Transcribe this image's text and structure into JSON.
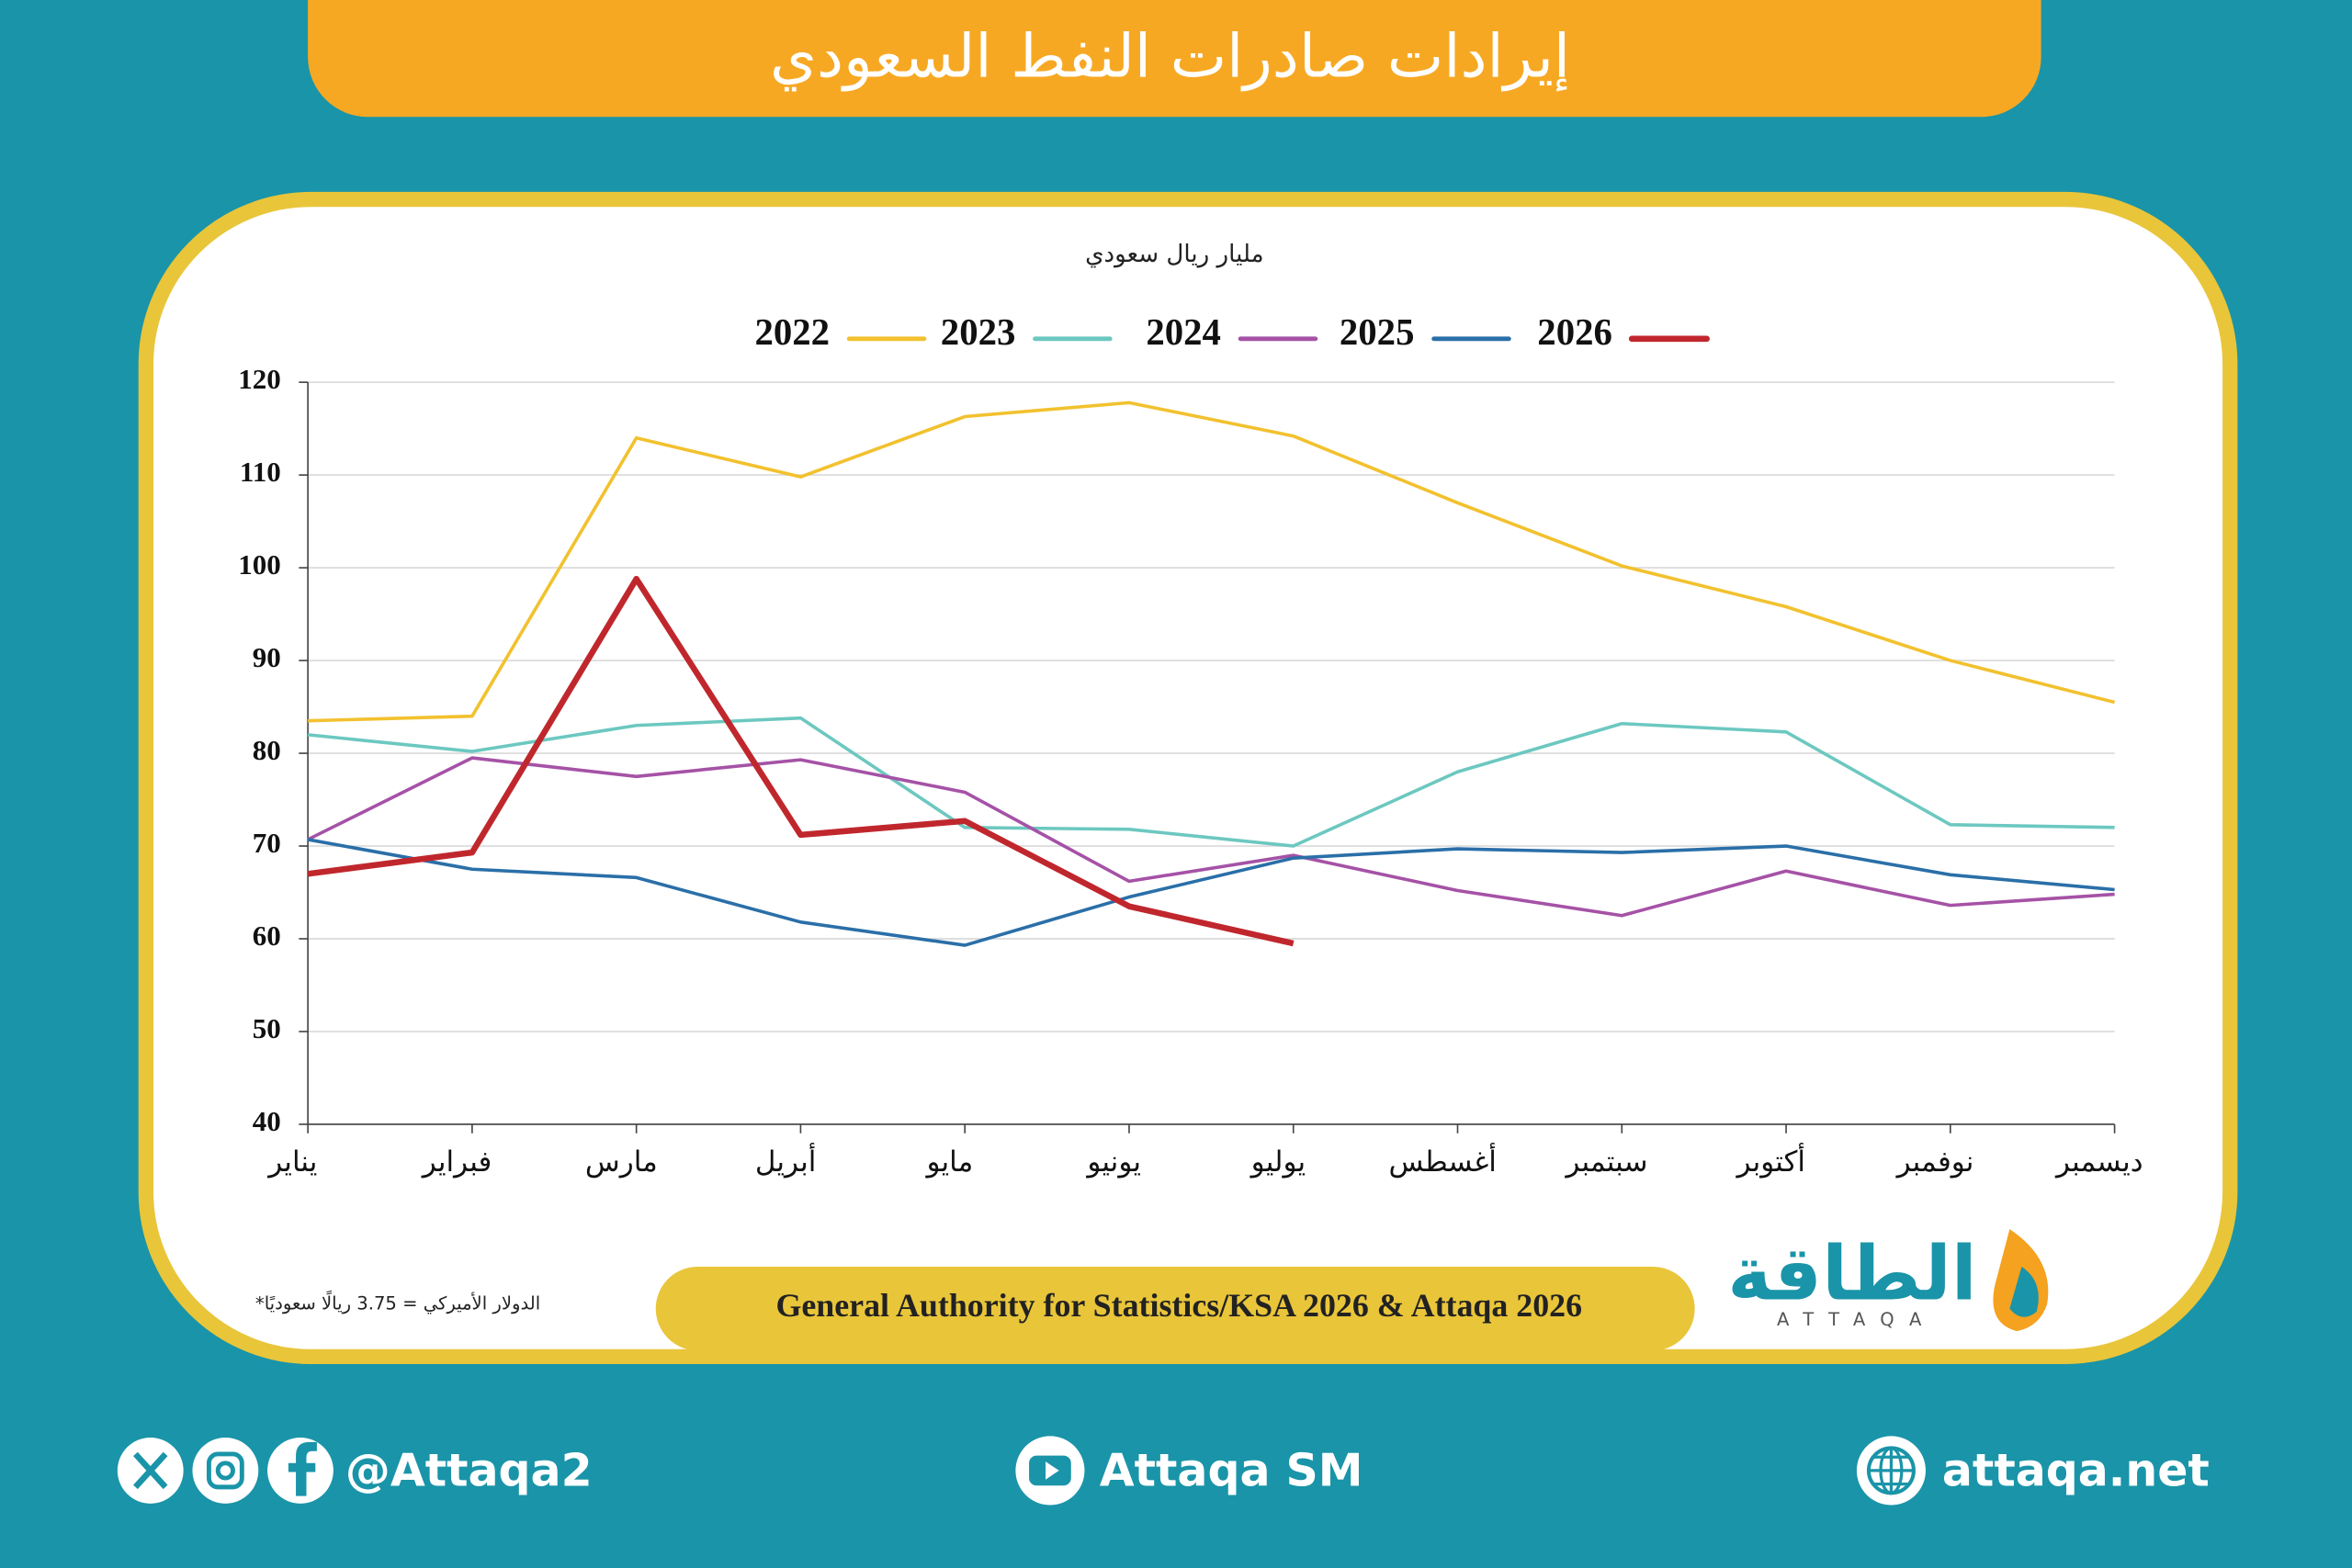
{
  "header": {
    "title": "إيرادات صادرات النفط السعودي"
  },
  "chart_data": {
    "type": "line",
    "subtitle": "مليار ريال سعودي",
    "categories": [
      "يناير",
      "فبراير",
      "مارس",
      "أبريل",
      "مايو",
      "يونيو",
      "يوليو",
      "أغسطس",
      "سبتمبر",
      "أكتوبر",
      "نوفمبر",
      "ديسمبر"
    ],
    "series": [
      {
        "name": "2022",
        "color": "#f2c12e",
        "values": [
          83.5,
          84,
          114,
          109.8,
          116.3,
          117.8,
          114.2,
          107,
          100.2,
          95.8,
          90,
          85.5
        ]
      },
      {
        "name": "2023",
        "color": "#6cc8c0",
        "values": [
          82,
          80.2,
          83,
          83.8,
          72,
          71.8,
          70,
          78,
          83.2,
          82.3,
          72.3,
          72
        ]
      },
      {
        "name": "2024",
        "color": "#a552a6",
        "values": [
          70.7,
          79.5,
          77.5,
          79.3,
          75.8,
          66.2,
          69,
          65.2,
          62.5,
          67.3,
          63.6,
          64.8
        ]
      },
      {
        "name": "2025",
        "color": "#2a6fa8",
        "values": [
          70.7,
          67.5,
          66.6,
          61.8,
          59.3,
          64.5,
          68.7,
          69.7,
          69.3,
          70,
          66.9,
          65.3
        ]
      },
      {
        "name": "2026",
        "color": "#c0272d",
        "values": [
          67,
          69.3,
          98.8,
          71.2,
          72.7,
          63.5,
          59.5,
          null,
          null,
          null,
          null,
          null
        ]
      }
    ],
    "ylim": [
      40,
      120
    ],
    "yticks": [
      40,
      50,
      60,
      70,
      80,
      90,
      100,
      110,
      120
    ],
    "grid": true,
    "source": "General Authority for Statistics/KSA 2026 & Attaqa 2026",
    "note": "*الدولار الأميركي = 3.75 ريالًا سعوديًا"
  },
  "logo": {
    "name": "الطاقة",
    "latin": "ATTAQA"
  },
  "footer": {
    "social": "@Attaqa2",
    "youtube": "Attaqa SM",
    "website": "attaqa.net"
  }
}
